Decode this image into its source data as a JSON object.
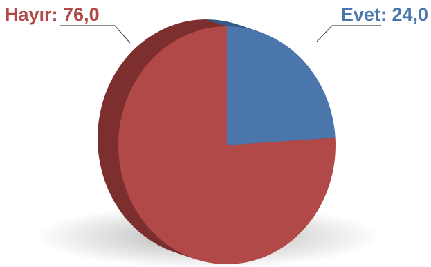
{
  "chart_data": {
    "type": "pie",
    "slices": [
      {
        "label": "Evet",
        "value": 24.0,
        "display": "Evet: 24,0",
        "color": "#4a76ab",
        "side_color": "#355a86"
      },
      {
        "label": "Hayır",
        "value": 76.0,
        "display": "Hayır: 76,0",
        "color": "#b04948",
        "side_color": "#7d2f2e"
      }
    ],
    "style": "3d",
    "leader_color": "#444444"
  }
}
